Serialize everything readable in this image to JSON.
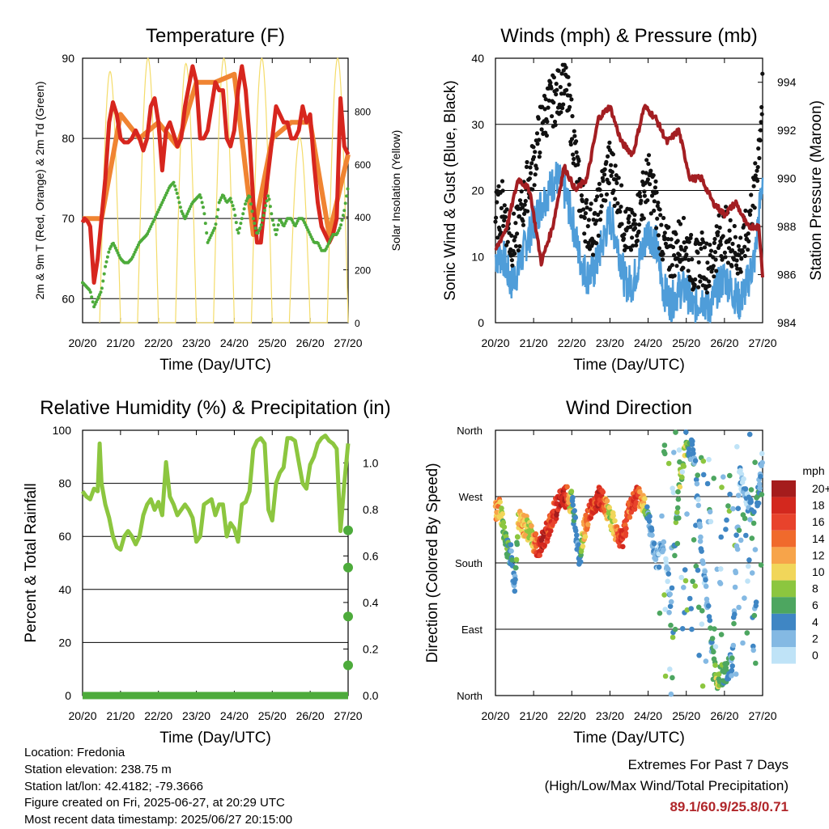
{
  "chart_data": [
    {
      "type": "line",
      "title": "Temperature (F)",
      "xlabel": "Time (Day/UTC)",
      "ylabel": "2m & 9m T (Red, Orange) & 2m Td (Green)",
      "y2label": "Solar Insolation (Yellow)",
      "x_ticks": [
        "20/20",
        "21/20",
        "22/20",
        "23/20",
        "24/20",
        "25/20",
        "26/20",
        "27/20"
      ],
      "y_ticks": [
        60,
        70,
        80,
        90
      ],
      "y2_ticks": [
        0,
        200,
        400,
        600,
        800
      ],
      "ylim": [
        57,
        90
      ],
      "y2lim": [
        0,
        1000
      ],
      "grid": "horizontal",
      "series": [
        {
          "name": "2m T",
          "color": "#d7261e",
          "x": [
            0,
            0.05,
            0.1,
            0.15,
            0.2,
            0.3,
            0.4,
            0.5,
            0.6,
            0.7,
            0.8,
            0.9,
            1.0,
            1.1,
            1.2,
            1.3,
            1.4,
            1.5,
            1.6,
            1.7,
            1.8,
            1.9,
            2.0,
            2.1,
            2.2,
            2.3,
            2.4,
            2.5,
            2.6,
            2.7,
            2.8,
            2.9,
            3.0,
            3.1,
            3.2,
            3.3,
            3.4,
            3.5,
            3.6,
            3.7,
            3.8,
            3.9,
            4.0,
            4.1,
            4.2,
            4.3,
            4.4,
            4.5,
            4.6,
            4.7,
            4.8,
            4.9,
            5.0,
            5.1,
            5.2,
            5.3,
            5.4,
            5.5,
            5.6,
            5.7,
            5.8,
            5.9,
            6.0,
            6.1,
            6.2,
            6.3,
            6.4,
            6.5,
            6.6,
            6.7,
            6.8,
            6.9,
            7.0
          ],
          "values": [
            69.5,
            70,
            69.8,
            69.5,
            69,
            62,
            65,
            70,
            75,
            82,
            84.5,
            83,
            80,
            79.5,
            79.5,
            80,
            81,
            80,
            78.5,
            80,
            84,
            85,
            82,
            76,
            81,
            82,
            80.5,
            79,
            80,
            84,
            86.5,
            89,
            87,
            80,
            80,
            81,
            84,
            87,
            86,
            86,
            80,
            79,
            81,
            86,
            89,
            86,
            80,
            72,
            67,
            67,
            72,
            76,
            80,
            84,
            83,
            82,
            82,
            80,
            80,
            81,
            84,
            82,
            83,
            77,
            72,
            69,
            68,
            67,
            68,
            70,
            85,
            79,
            78
          ]
        },
        {
          "name": "9m T",
          "color": "#f08432",
          "x": [
            0,
            0.5,
            1.0,
            1.5,
            2.0,
            2.5,
            3.0,
            3.5,
            4.0,
            4.5,
            5.0,
            5.5,
            6.0,
            6.5,
            7.0
          ],
          "values": [
            70,
            70,
            83,
            80,
            82,
            79,
            87,
            87,
            88,
            68,
            80,
            82,
            82,
            68,
            78
          ]
        },
        {
          "name": "2m Td",
          "color": "#4dab3b",
          "x": [
            0,
            0.1,
            0.2,
            0.3,
            0.4,
            0.5,
            0.6,
            0.7,
            0.8,
            0.9,
            1.0,
            1.1,
            1.2,
            1.3,
            1.4,
            1.5,
            1.6,
            1.7,
            1.8,
            1.9,
            2.0,
            2.1,
            2.2,
            2.3,
            2.4,
            2.5,
            2.6,
            2.7,
            2.8,
            2.9,
            3.0,
            3.1,
            3.2,
            3.3,
            3.4,
            3.5,
            3.6,
            3.7,
            3.8,
            3.9,
            4.0,
            4.1,
            4.2,
            4.3,
            4.4,
            4.5,
            4.6,
            4.7,
            4.8,
            4.9,
            5.0,
            5.1,
            5.2,
            5.3,
            5.4,
            5.5,
            5.6,
            5.7,
            5.8,
            5.9,
            6.0,
            6.1,
            6.2,
            6.3,
            6.4,
            6.5,
            6.6,
            6.7,
            6.8,
            6.9,
            7.0
          ],
          "values": [
            62,
            61.5,
            61,
            59,
            60,
            61,
            64,
            66,
            67,
            66,
            65,
            64.5,
            64.5,
            65,
            66,
            67,
            67.5,
            68,
            69,
            70,
            71,
            72,
            73,
            74,
            74.5,
            73,
            71,
            70,
            71,
            72,
            72.5,
            73,
            71,
            67,
            68,
            69,
            72,
            73,
            72,
            72.5,
            71,
            68,
            70,
            72,
            73,
            70,
            68,
            69,
            71,
            73,
            70,
            68,
            70,
            69,
            70,
            70,
            69,
            70,
            70,
            69,
            68,
            67,
            67,
            66,
            66,
            67,
            68,
            68,
            69,
            71,
            74
          ]
        },
        {
          "name": "Solar Insolation",
          "color": "#f4dc6a",
          "axis": "y2",
          "note": "daily cycles peaking near 800-1000 W/m2 each afternoon"
        }
      ]
    },
    {
      "type": "scatter",
      "title": "Winds (mph) & Pressure (mb)",
      "xlabel": "Time (Day/UTC)",
      "ylabel": "Sonic Wind & Gust (Blue, Black)",
      "y2label": "Station Pressure (Maroon)",
      "x_ticks": [
        "20/20",
        "21/20",
        "22/20",
        "23/20",
        "24/20",
        "25/20",
        "26/20",
        "27/20"
      ],
      "y_ticks": [
        0,
        10,
        20,
        30,
        40
      ],
      "y2_ticks": [
        984,
        986,
        988,
        990,
        992,
        994
      ],
      "ylim": [
        0,
        40
      ],
      "y2lim": [
        984,
        995
      ],
      "grid": "horizontal",
      "series": [
        {
          "name": "Gust",
          "color": "#111111",
          "x": [
            0,
            0.2,
            0.4,
            0.6,
            0.8,
            1.0,
            1.2,
            1.4,
            1.6,
            1.8,
            2.0,
            2.2,
            2.4,
            2.6,
            2.8,
            3.0,
            3.2,
            3.4,
            3.6,
            3.8,
            4.0,
            4.2,
            4.4,
            4.6,
            4.8,
            5.0,
            5.2,
            5.4,
            5.6,
            5.8,
            6.0,
            6.2,
            6.4,
            6.6,
            6.8,
            7.0
          ],
          "values": [
            16,
            18,
            12,
            14,
            20,
            24,
            30,
            33,
            34,
            37,
            30,
            20,
            15,
            14,
            20,
            24,
            20,
            14,
            13,
            18,
            22,
            18,
            12,
            10,
            12,
            12,
            8,
            10,
            8,
            12,
            14,
            12,
            10,
            14,
            20,
            34
          ]
        },
        {
          "name": "Wind",
          "color": "#4f9dd9",
          "x": [
            0,
            0.2,
            0.4,
            0.6,
            0.8,
            1.0,
            1.2,
            1.4,
            1.6,
            1.8,
            2.0,
            2.2,
            2.4,
            2.6,
            2.8,
            3.0,
            3.2,
            3.4,
            3.6,
            3.8,
            4.0,
            4.2,
            4.4,
            4.6,
            4.8,
            5.0,
            5.2,
            5.4,
            5.6,
            5.8,
            6.0,
            6.2,
            6.4,
            6.6,
            6.8,
            7.0
          ],
          "values": [
            10,
            10,
            6,
            8,
            12,
            15,
            18,
            20,
            22,
            20,
            16,
            10,
            7,
            8,
            12,
            16,
            12,
            6,
            6,
            10,
            14,
            12,
            5,
            3,
            5,
            5,
            2,
            4,
            2,
            5,
            7,
            5,
            3,
            6,
            10,
            22
          ]
        },
        {
          "name": "Pressure",
          "color": "#a31e22",
          "axis": "y2",
          "x": [
            0,
            0.3,
            0.6,
            0.9,
            1.2,
            1.5,
            1.8,
            2.1,
            2.4,
            2.7,
            3.0,
            3.3,
            3.6,
            3.9,
            4.2,
            4.5,
            4.8,
            5.1,
            5.4,
            5.7,
            6.0,
            6.3,
            6.6,
            6.9,
            7.0
          ],
          "values": [
            987,
            988,
            990,
            989.5,
            986.5,
            988,
            990.5,
            989.5,
            990,
            992.5,
            993,
            991.5,
            991,
            993,
            992.5,
            991.5,
            992,
            990,
            990,
            989,
            988.5,
            989,
            988,
            988,
            986
          ]
        }
      ]
    },
    {
      "type": "line",
      "title": "Relative Humidity (%) & Precipitation (in)",
      "xlabel": "Time (Day/UTC)",
      "ylabel": "Percent & Total Rainfall",
      "x_ticks": [
        "20/20",
        "21/20",
        "22/20",
        "23/20",
        "24/20",
        "25/20",
        "26/20",
        "27/20"
      ],
      "y_ticks": [
        0,
        20,
        40,
        60,
        80,
        100
      ],
      "y2_ticks": [
        0.0,
        0.2,
        0.4,
        0.6,
        0.8,
        1.0
      ],
      "y2_tick_labels": [
        "0.0",
        "0.2",
        "0.4",
        "0.6",
        "0.8",
        "1.0"
      ],
      "ylim": [
        0,
        100
      ],
      "y2lim": [
        0,
        1.14
      ],
      "grid": "horizontal",
      "series": [
        {
          "name": "RH",
          "color": "#8cc63f",
          "x": [
            0,
            0.1,
            0.2,
            0.3,
            0.4,
            0.45,
            0.5,
            0.6,
            0.7,
            0.8,
            0.9,
            1.0,
            1.1,
            1.2,
            1.3,
            1.4,
            1.5,
            1.6,
            1.7,
            1.8,
            1.9,
            2.0,
            2.1,
            2.2,
            2.3,
            2.4,
            2.5,
            2.6,
            2.7,
            2.8,
            2.9,
            3.0,
            3.1,
            3.2,
            3.3,
            3.4,
            3.5,
            3.6,
            3.7,
            3.8,
            3.9,
            4.0,
            4.1,
            4.2,
            4.3,
            4.4,
            4.5,
            4.6,
            4.7,
            4.8,
            4.9,
            5.0,
            5.1,
            5.2,
            5.3,
            5.4,
            5.5,
            5.6,
            5.7,
            5.8,
            5.9,
            6.0,
            6.1,
            6.2,
            6.3,
            6.4,
            6.5,
            6.6,
            6.7,
            6.8,
            6.9,
            7.0
          ],
          "values": [
            77,
            75,
            74,
            78,
            77,
            95,
            80,
            72,
            67,
            60,
            56,
            55,
            60,
            62,
            60,
            57,
            60,
            68,
            72,
            74,
            70,
            73,
            68,
            88,
            75,
            72,
            68,
            70,
            72,
            70,
            67,
            58,
            60,
            72,
            73,
            74,
            68,
            72,
            72,
            60,
            65,
            63,
            58,
            72,
            73,
            77,
            93,
            96,
            97,
            95,
            70,
            66,
            80,
            84,
            86,
            97,
            97,
            96,
            88,
            80,
            78,
            87,
            90,
            95,
            97,
            98,
            96,
            95,
            93,
            62,
            80,
            95
          ]
        },
        {
          "name": "Total Rainfall",
          "color": "#4dab3b",
          "axis": "y2",
          "x": [
            0,
            1,
            2,
            3,
            4,
            5,
            6,
            6.9,
            7.0,
            7.0,
            7.0,
            7.0
          ],
          "values": [
            0,
            0,
            0,
            0,
            0,
            0,
            0,
            0,
            0.13,
            0.34,
            0.55,
            0.71
          ]
        }
      ]
    },
    {
      "type": "scatter",
      "title": "Wind Direction",
      "xlabel": "Time (Day/UTC)",
      "ylabel": "Direction (Colored By Speed)",
      "x_ticks": [
        "20/20",
        "21/20",
        "22/20",
        "23/20",
        "24/20",
        "25/20",
        "26/20",
        "27/20"
      ],
      "y_ticks": [
        "North",
        "East",
        "South",
        "West",
        "North"
      ],
      "ylim": [
        0,
        360
      ],
      "grid": "horizontal",
      "legend_title": "mph",
      "legend_labels": [
        "20+",
        "18",
        "16",
        "14",
        "12",
        "10",
        "8",
        "6",
        "4",
        "2",
        "0"
      ],
      "legend_colors": [
        "#a51c1c",
        "#d3281e",
        "#e8432c",
        "#f06a2c",
        "#f7a44a",
        "#f1d65a",
        "#8cc63f",
        "#4da660",
        "#3f86c4",
        "#84b9e3",
        "#bfe3f7"
      ],
      "note": "Wind direction in degrees, colored by speed",
      "series": [
        {
          "name": "Direction",
          "x": [
            0,
            0.1,
            0.2,
            0.3,
            0.4,
            0.5,
            0.6,
            0.7,
            0.8,
            0.9,
            1.0,
            1.1,
            1.2,
            1.3,
            1.4,
            1.5,
            1.6,
            1.7,
            1.8,
            1.9,
            2.0,
            2.1,
            2.2,
            2.3,
            2.4,
            2.5,
            2.6,
            2.7,
            2.8,
            2.9,
            3.0,
            3.1,
            3.2,
            3.3,
            3.4,
            3.5,
            3.6,
            3.7,
            3.8,
            3.9,
            4.0,
            4.2,
            4.4,
            4.6,
            4.8,
            5.0,
            5.2,
            5.4,
            5.6,
            5.8,
            6.0,
            6.2,
            6.4,
            6.6,
            6.8,
            7.0
          ],
          "values": [
            250,
            255,
            230,
            200,
            190,
            150,
            240,
            230,
            230,
            220,
            210,
            200,
            205,
            215,
            230,
            245,
            255,
            265,
            270,
            268,
            262,
            230,
            180,
            220,
            240,
            250,
            260,
            270,
            265,
            255,
            245,
            230,
            215,
            210,
            230,
            250,
            265,
            270,
            265,
            260,
            250,
            180,
            200,
            130,
            280,
            340,
            330,
            200,
            100,
            20,
            30,
            40,
            300,
            260,
            240,
            320
          ],
          "speeds": [
            12,
            12,
            8,
            6,
            4,
            4,
            10,
            12,
            10,
            8,
            12,
            16,
            18,
            18,
            16,
            16,
            18,
            18,
            18,
            14,
            6,
            4,
            3,
            10,
            14,
            16,
            16,
            18,
            16,
            12,
            8,
            10,
            14,
            18,
            16,
            14,
            16,
            16,
            12,
            10,
            4,
            2,
            2,
            2,
            8,
            8,
            2,
            2,
            3,
            8,
            6,
            4,
            2,
            2,
            6,
            2
          ]
        }
      ]
    }
  ],
  "info": {
    "location": "Location: Fredonia",
    "elevation": "Station elevation: 238.75 m",
    "latlon": "Station lat/lon: 42.4182; -79.3666",
    "created": "Figure created on Fri, 2025-06-27, at 20:29 UTC",
    "recent": "Most recent data timestamp: 2025/06/27 20:15:00"
  },
  "extremes": {
    "line1": "Extremes For Past 7 Days",
    "line2": "(High/Low/Max Wind/Total Precipitation)",
    "value": "89.1/60.9/25.8/0.71"
  }
}
